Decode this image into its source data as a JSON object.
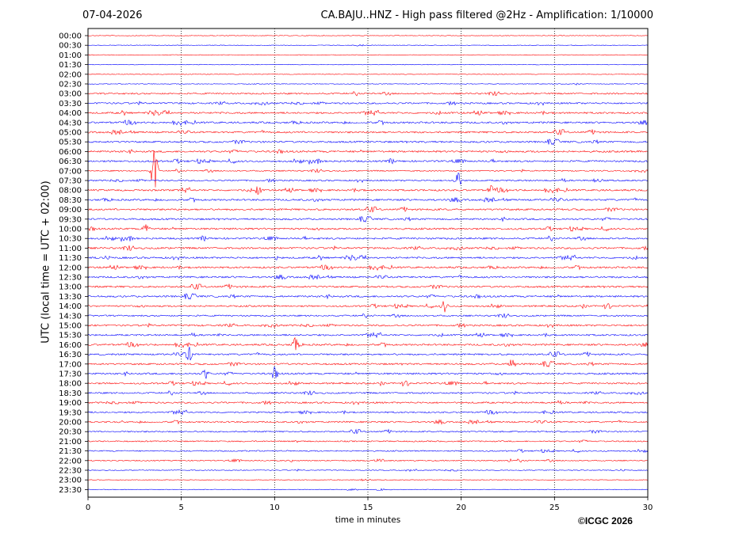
{
  "header": {
    "date": "07-04-2026",
    "title": "CA.BAJU..HNZ - High pass filtered @2Hz - Amplification: 1/10000"
  },
  "footer": {
    "copyright": "©ICGC 2026"
  },
  "chart_data": {
    "type": "line",
    "xlabel": "time in minutes",
    "ylabel": "UTC (local time = UTC + 02:00)",
    "xlim": [
      0,
      30
    ],
    "x_ticks": [
      "0",
      "5",
      "10",
      "15",
      "20",
      "25",
      "30"
    ],
    "y_ticks": [
      "00:00",
      "00:30",
      "01:00",
      "01:30",
      "02:00",
      "02:30",
      "03:00",
      "03:30",
      "04:00",
      "04:30",
      "05:00",
      "05:30",
      "06:00",
      "06:30",
      "07:00",
      "07:30",
      "08:00",
      "08:30",
      "09:00",
      "09:30",
      "10:00",
      "10:30",
      "11:00",
      "11:30",
      "12:00",
      "12:30",
      "13:00",
      "13:30",
      "14:00",
      "14:30",
      "15:00",
      "15:30",
      "16:00",
      "16:30",
      "17:00",
      "17:30",
      "18:00",
      "18:30",
      "19:00",
      "19:30",
      "20:00",
      "20:30",
      "21:00",
      "21:30",
      "22:00",
      "22:30",
      "23:00",
      "23:30"
    ],
    "grid": "vertical dotted at 5-minute intervals",
    "colors": {
      "even_rows": "#ff0000",
      "odd_rows": "#0000ff"
    },
    "trace_activity": [
      0.05,
      0.05,
      0.05,
      0.05,
      0.06,
      0.1,
      0.7,
      0.8,
      0.9,
      0.9,
      0.9,
      0.9,
      0.95,
      0.9,
      0.5,
      0.7,
      0.9,
      0.9,
      0.9,
      0.9,
      0.9,
      0.9,
      0.9,
      0.9,
      0.9,
      0.9,
      0.9,
      0.9,
      0.8,
      0.7,
      0.9,
      0.8,
      0.9,
      0.8,
      0.9,
      0.9,
      0.8,
      0.7,
      0.8,
      0.7,
      0.7,
      0.6,
      0.5,
      0.5,
      0.4,
      0.15,
      0.08,
      0.06
    ],
    "events": [
      {
        "row": 14,
        "minute": 3.55,
        "amplitude": 3.4
      },
      {
        "row": 15,
        "minute": 19.8,
        "amplitude": 1.3
      },
      {
        "row": 16,
        "minute": 9.1,
        "amplitude": 0.6
      },
      {
        "row": 16,
        "minute": 21.6,
        "amplitude": 0.5
      },
      {
        "row": 20,
        "minute": 3.1,
        "amplitude": 0.6
      },
      {
        "row": 28,
        "minute": 19.1,
        "amplitude": 0.7
      },
      {
        "row": 32,
        "minute": 11.1,
        "amplitude": 0.7
      },
      {
        "row": 33,
        "minute": 5.4,
        "amplitude": 1.0
      },
      {
        "row": 34,
        "minute": 22.7,
        "amplitude": 0.8
      },
      {
        "row": 35,
        "minute": 6.3,
        "amplitude": 0.6
      },
      {
        "row": 35,
        "minute": 10.0,
        "amplitude": 0.6
      }
    ]
  }
}
